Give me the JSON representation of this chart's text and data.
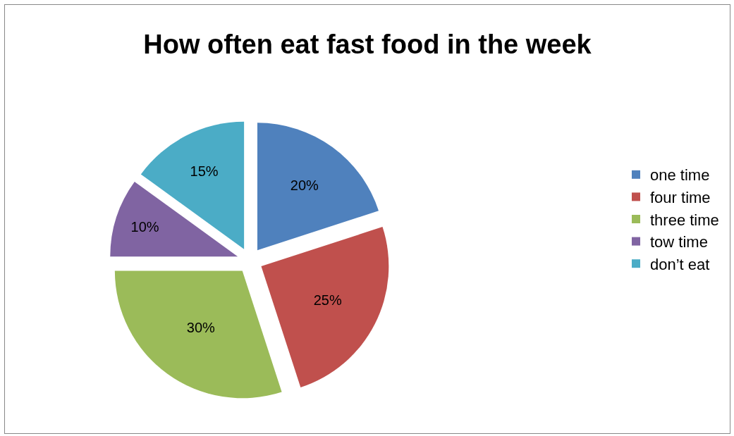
{
  "chart_data": {
    "type": "pie",
    "title": "How often eat fast food in the week",
    "categories": [
      "one time",
      "four time",
      "three time",
      "tow time",
      "don’t eat"
    ],
    "values": [
      20,
      25,
      30,
      10,
      15
    ],
    "value_labels": [
      "20%",
      "25%",
      "30%",
      "10%",
      "15%"
    ],
    "colors": [
      "#4f81bd",
      "#c0504d",
      "#9bbb59",
      "#8064a2",
      "#4bacc6"
    ],
    "legend": "right"
  }
}
